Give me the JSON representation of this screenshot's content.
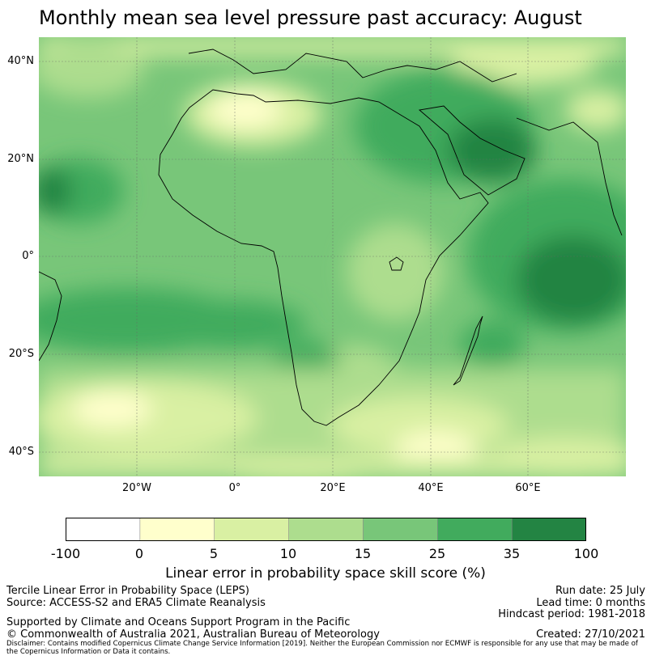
{
  "title": "Monthly mean sea level pressure past accuracy: August",
  "map": {
    "lat_labels": [
      "40°N",
      "20°N",
      "0°",
      "20°S",
      "40°S"
    ],
    "lon_labels": [
      "20°W",
      "0°",
      "20°E",
      "40°E",
      "60°E"
    ],
    "extent": {
      "lon": [
        -40,
        80
      ],
      "lat": [
        -45,
        45
      ]
    },
    "grid": true,
    "coastline_color": "#000000"
  },
  "colorbar": {
    "ticks": [
      "-100",
      "0",
      "5",
      "10",
      "15",
      "25",
      "35",
      "100"
    ],
    "colors": [
      "#ffffff",
      "#ffffcc",
      "#d9f0a3",
      "#addd8e",
      "#78c679",
      "#41ab5d",
      "#238443"
    ],
    "label": "Linear error in probability space skill score (%)"
  },
  "footer": {
    "left": [
      "Tercile Linear Error in Probability Space (LEPS)",
      "Source: ACCESS-S2 and ERA5 Climate Reanalysis"
    ],
    "supported": "Supported by Climate and Oceans Support Program in the Pacific",
    "copyright": "© Commonwealth of Australia 2021, Australian Bureau of Meteorology",
    "right": [
      "Run date: 25 July",
      "Lead time: 0 months",
      "Hindcast period: 1981-2018"
    ],
    "created": "Created: 27/10/2021",
    "disclaimer": "Disclaimer: Contains modified Copernicus Climate Change Service Information [2019]. Neither the European Commission nor ECMWF is responsible for any use that may be made of the Copernicus Information or Data it contains."
  }
}
